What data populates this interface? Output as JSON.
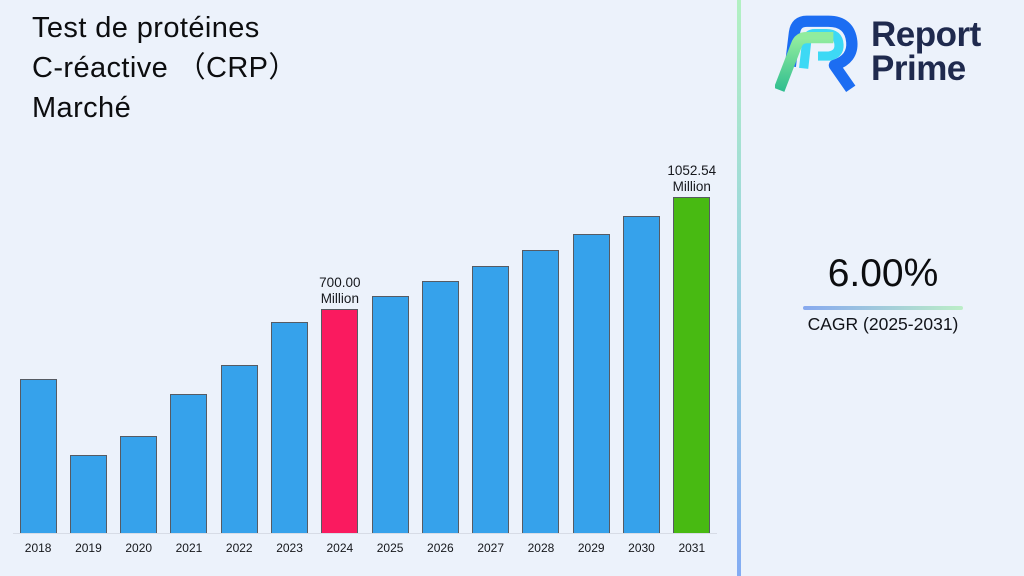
{
  "title": {
    "lines": [
      "Test de protéines",
      "C-réactive （CRP）",
      "Marché"
    ]
  },
  "logo": {
    "name": "Report Prime",
    "line1": "Report",
    "line2": "Prime",
    "colors": {
      "navy": "#1F2A4E",
      "blue": "#1C6DF2",
      "cyan": "#3DD9F5",
      "green_light": "#90EC9E",
      "green_dark": "#2EBD8F"
    }
  },
  "cagr": {
    "value": "6.00%",
    "label": "CAGR (2025-2031)"
  },
  "accents": {
    "divider_top": "#B2F1C2",
    "divider_mid": "#9BD5DE",
    "divider_bottom": "#83ACF3",
    "underline_left": "#87A9EF",
    "underline_right": "#BCEEC7",
    "background": "#ECF2FB"
  },
  "chart_data": {
    "type": "bar",
    "title": "Test de protéines C-réactive （CRP） Marché",
    "unit": "Million",
    "categories": [
      "2018",
      "2019",
      "2020",
      "2021",
      "2022",
      "2023",
      "2024",
      "2025",
      "2026",
      "2027",
      "2028",
      "2029",
      "2030",
      "2031"
    ],
    "values": [
      480,
      242,
      301,
      433,
      524,
      659,
      700,
      742,
      786.52,
      833.71,
      883.73,
      936.76,
      992.96,
      1052.54
    ],
    "ylim": [
      0,
      1150
    ],
    "grid": false,
    "legend": false,
    "annotations": [
      {
        "category": "2024",
        "text": "700.00\nMillion"
      },
      {
        "category": "2031",
        "text": "1052.54\nMillion"
      }
    ],
    "colors": {
      "default": "#36A2EB",
      "highlights": {
        "2024": "#FA1A5F",
        "2031": "#48BA12"
      },
      "bar_border": "#565B63"
    }
  }
}
